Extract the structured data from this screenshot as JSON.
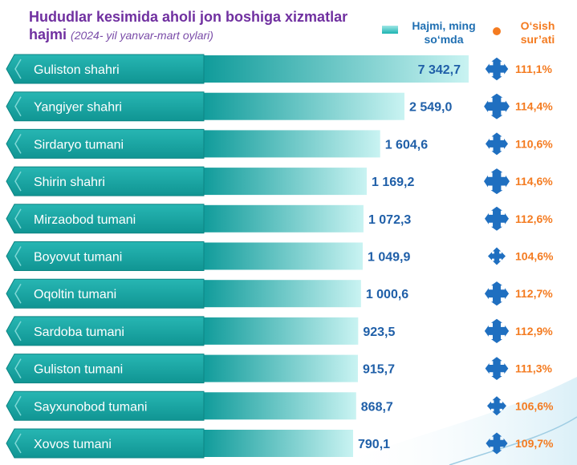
{
  "title": {
    "main": "Hududlar kesimida aholi jon boshiga xizmatlar hajmi",
    "sub": "(2024- yil yanvar-mart oylari)"
  },
  "legend": {
    "volume": "Hajmi, ming so‘mda",
    "growth": "O‘sish sur’ati"
  },
  "colors": {
    "title": "#7030a0",
    "label_box": "#17a19f",
    "bar_start": "#0f9b9a",
    "bar_end": "#c9f3f2",
    "value": "#1f5fa8",
    "growth": "#f47b20",
    "growth_marker": "#1f6fc0"
  },
  "chart_data": {
    "type": "bar",
    "orientation": "horizontal",
    "categories": [
      "Guliston shahri",
      "Yangiyer shahri",
      "Sirdaryo tumani",
      "Shirin shahri",
      "Mirzaobod tumani",
      "Boyovut tumani",
      "Oqoltin tumani",
      "Sardoba tumani",
      "Guliston tumani",
      "Sayxunobod tumani",
      "Xovos tumani"
    ],
    "series": [
      {
        "name": "Hajmi, ming so‘mda",
        "values": [
          7342.7,
          2549.0,
          1604.6,
          1169.2,
          1072.3,
          1049.9,
          1000.6,
          923.5,
          915.7,
          868.7,
          790.1
        ],
        "labels": [
          "7 342,7",
          "2 549,0",
          "1 604,6",
          "1 169,2",
          "1 072,3",
          "1 049,9",
          "1 000,6",
          "923,5",
          "915,7",
          "868,7",
          "790,1"
        ]
      },
      {
        "name": "O‘sish sur’ati",
        "values": [
          111.1,
          114.4,
          110.6,
          114.6,
          112.6,
          104.6,
          112.7,
          112.9,
          111.3,
          106.6,
          109.7
        ],
        "labels": [
          "111,1%",
          "114,4%",
          "110,6%",
          "114,6%",
          "112,6%",
          "104,6%",
          "112,7%",
          "112,9%",
          "111,3%",
          "106,6%",
          "109,7%"
        ]
      }
    ]
  }
}
